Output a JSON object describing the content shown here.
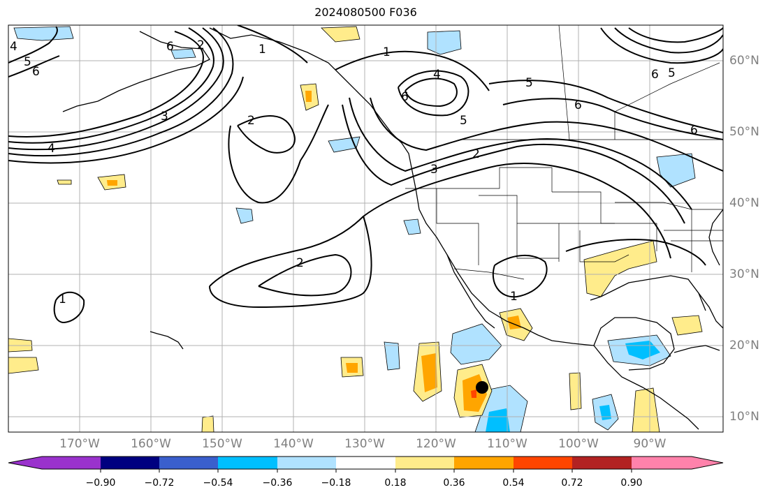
{
  "title": "2024080500 F036",
  "longitude_labels": [
    "170°W",
    "160°W",
    "150°W",
    "140°W",
    "130°W",
    "120°W",
    "110°W",
    "100°W",
    "90°W"
  ],
  "latitude_labels": [
    "60°N",
    "50°N",
    "40°N",
    "30°N",
    "20°N",
    "10°N"
  ],
  "colorbar": {
    "tick_labels": [
      "−0.90",
      "−0.72",
      "−0.54",
      "−0.36",
      "−0.18",
      "0.18",
      "0.36",
      "0.54",
      "0.72",
      "0.90"
    ],
    "colors": [
      "#9a32cd",
      "#000080",
      "#3a5fcd",
      "#00bfff",
      "#b0e2ff",
      "#ffffff",
      "#ffec8b",
      "#ffa500",
      "#ff4500",
      "#b22222",
      "#ff82ab"
    ]
  },
  "contour_labels": [
    "4",
    "5",
    "6",
    "6",
    "2",
    "1",
    "4",
    "6",
    "5",
    "5",
    "6",
    "6",
    "5",
    "6",
    "3",
    "4",
    "2",
    "3",
    "1",
    "2",
    "2",
    "1",
    "1"
  ],
  "marker": "storm-center"
}
